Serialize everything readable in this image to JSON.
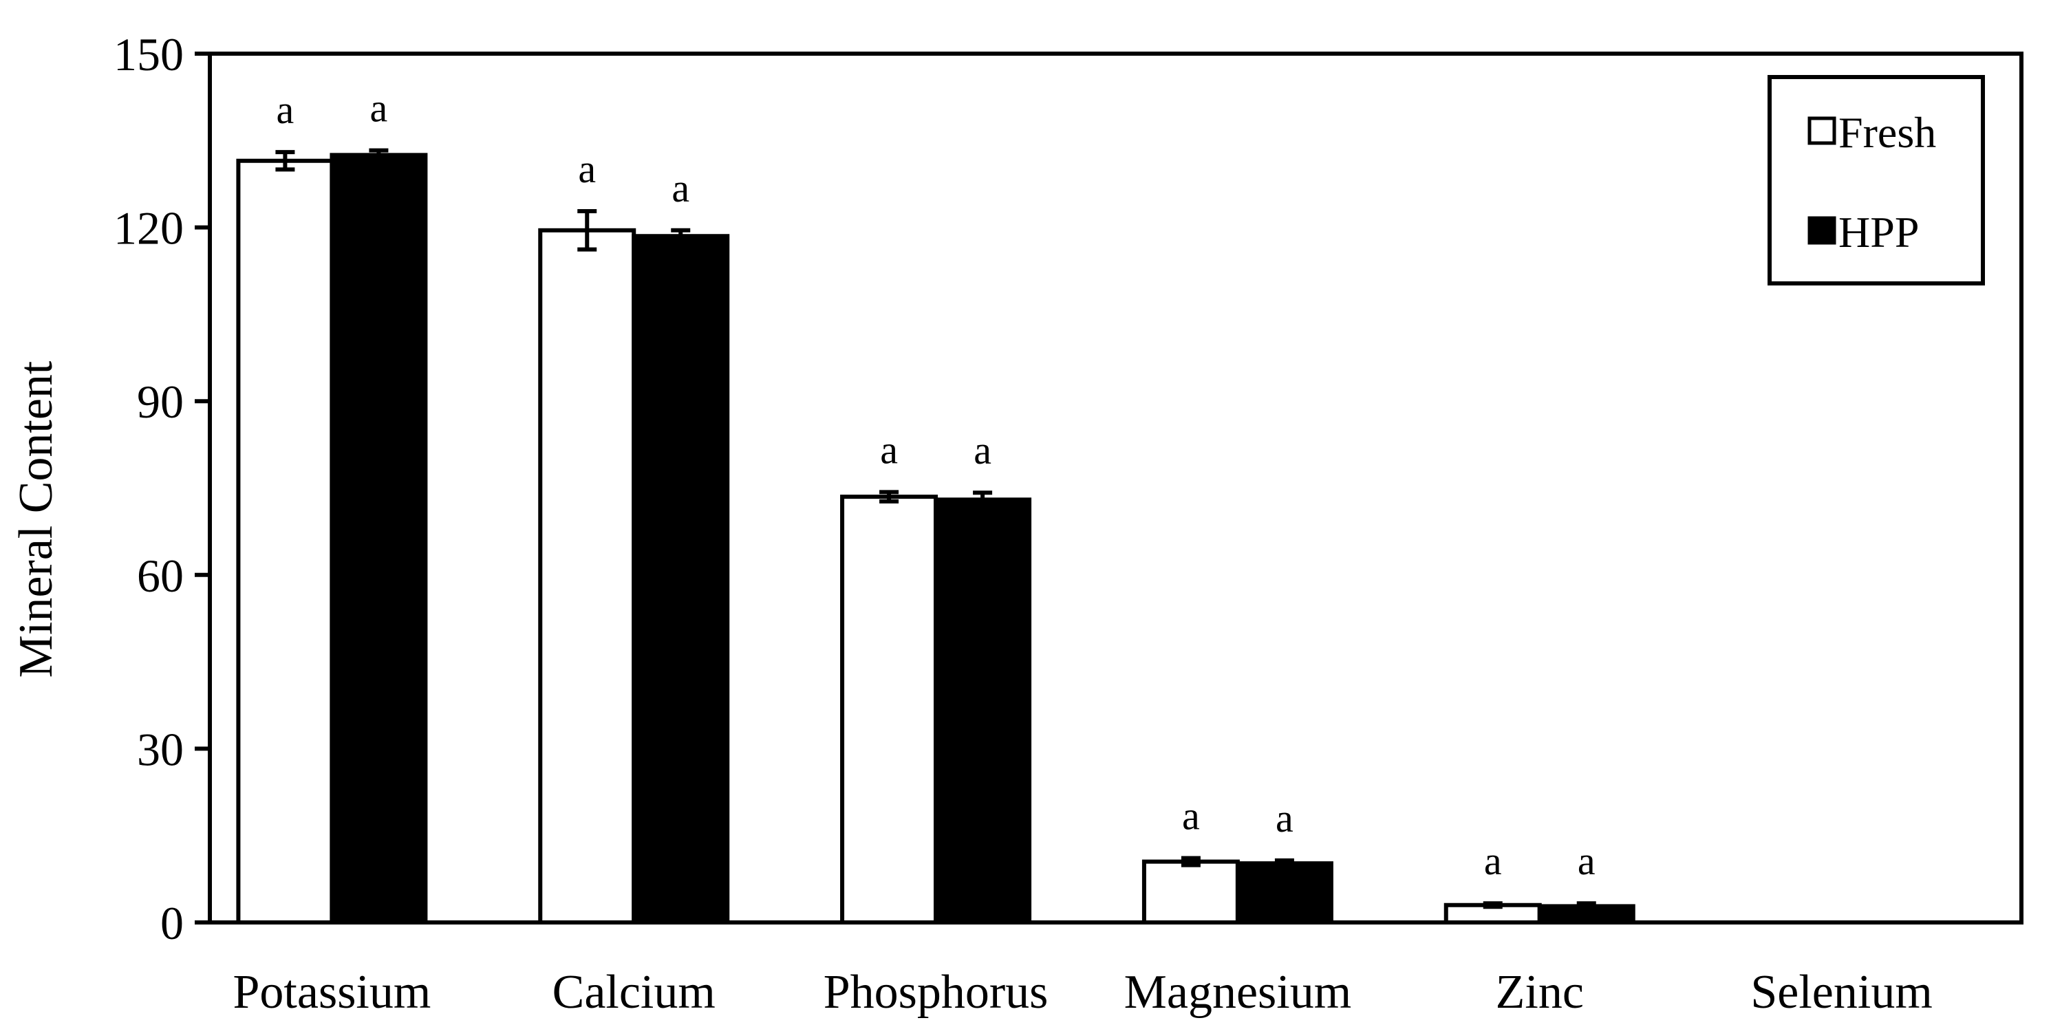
{
  "chart_data": {
    "type": "bar",
    "title": "",
    "xlabel": "",
    "ylabel": "Mineral Content",
    "ylim": [
      0,
      150
    ],
    "yticks": [
      0,
      30,
      60,
      90,
      120,
      150
    ],
    "categories": [
      "Potassium",
      "Calcium",
      "Phosphorus",
      "Magnesium",
      "Zinc",
      "Selenium"
    ],
    "series": [
      {
        "name": "Fresh",
        "color": "#ffffff",
        "values": [
          131.5,
          119.5,
          73.5,
          10.5,
          3.0,
          0.1
        ],
        "errors": [
          1.5,
          3.3,
          0.8,
          0.6,
          0.3,
          0.0
        ]
      },
      {
        "name": "HPP",
        "color": "#000000",
        "values": [
          132.5,
          118.5,
          73.0,
          10.2,
          2.8,
          0.1
        ],
        "errors": [
          0.8,
          1.0,
          1.2,
          0.5,
          0.5,
          0.0
        ]
      }
    ],
    "significance": [
      [
        "a",
        "a"
      ],
      [
        "a",
        "a"
      ],
      [
        "a",
        "a"
      ],
      [
        "a",
        "a"
      ],
      [
        "a",
        "a"
      ],
      [
        "",
        ""
      ]
    ],
    "legend_position": "top-right",
    "grid": false
  }
}
